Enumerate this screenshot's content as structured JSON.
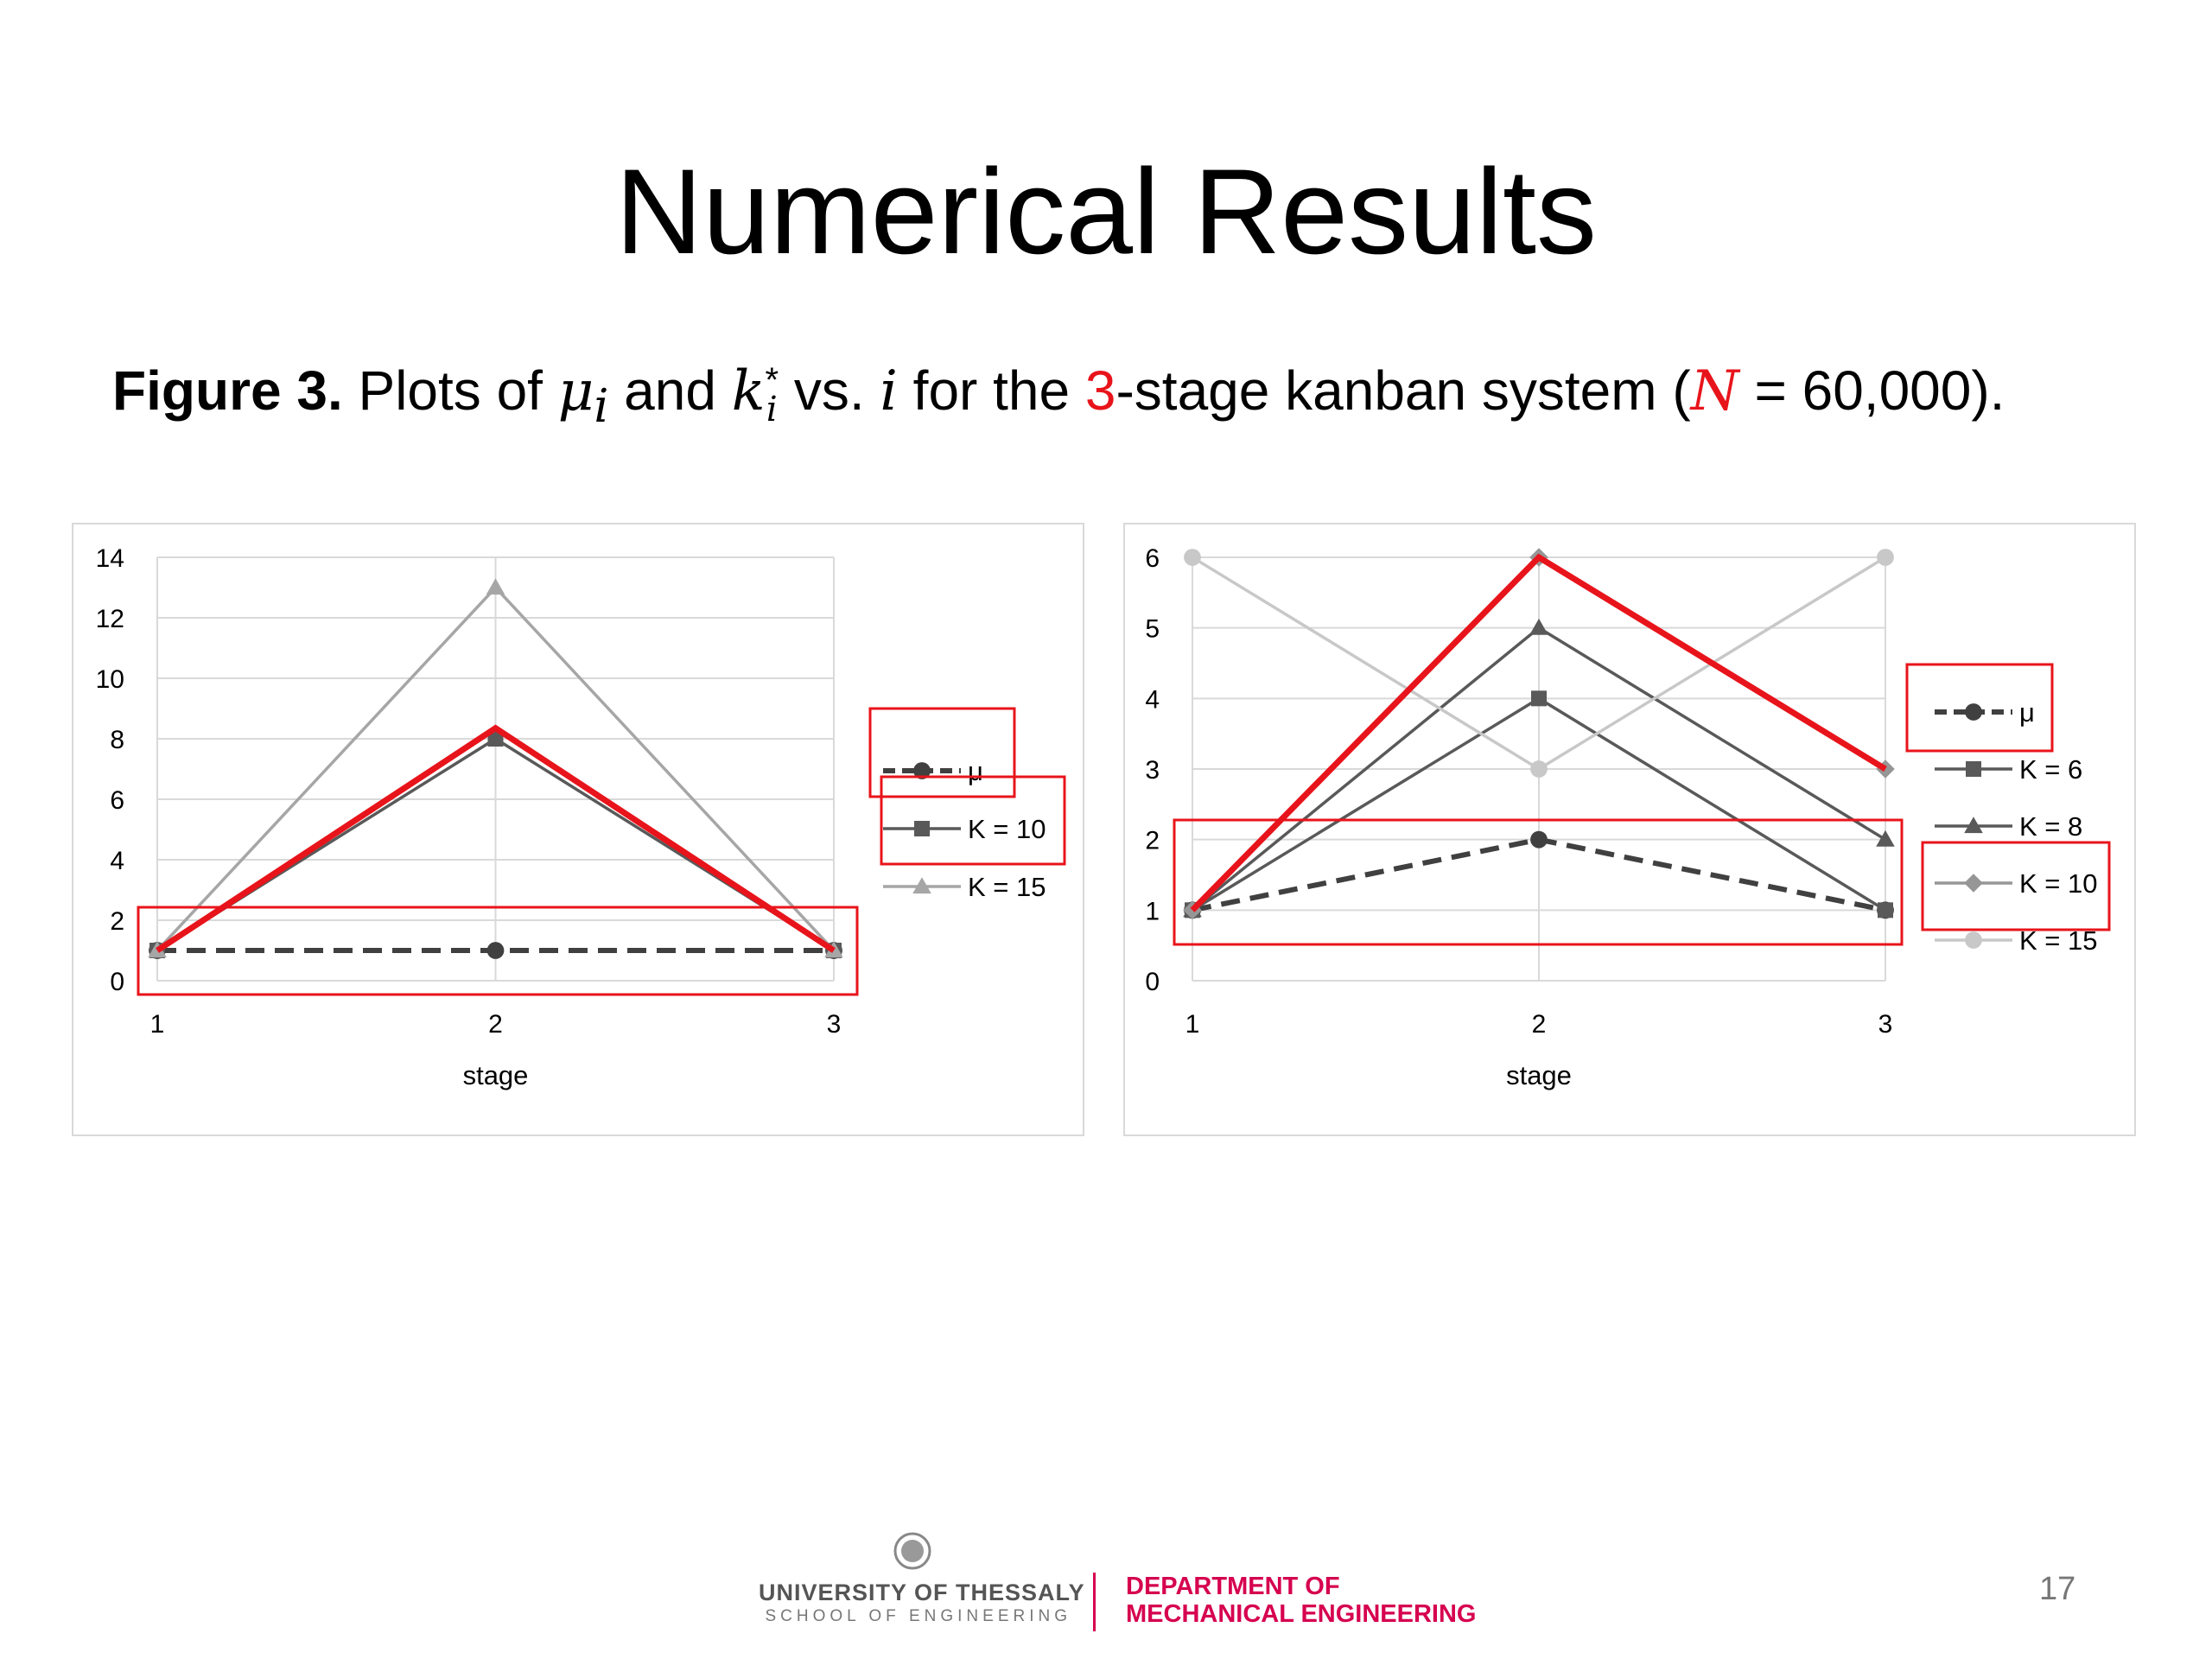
{
  "slide": {
    "title": "Numerical Results",
    "caption": {
      "figure_label": "Figure 3.",
      "t1": " Plots of ",
      "mu_sym": "μ",
      "mu_sub": "i",
      "t2": " and ",
      "k_sym": "k",
      "k_sub": "i",
      "k_sup": "*",
      "t3": " vs. ",
      "i_sym": "i",
      "t4": " for the ",
      "stages": "3",
      "t5": "-stage kanban system (",
      "n_sym": "N",
      "t6": " = 60,000)."
    },
    "footer": {
      "university": "UNIVERSITY OF THESSALY",
      "school": "SCHOOL OF ENGINEERING",
      "dept_line1": "DEPARTMENT OF",
      "dept_line2": "MECHANICAL ENGINEERING"
    },
    "page_number": "17"
  },
  "colors": {
    "highlight": "#e8141b",
    "brand": "#d6004f"
  },
  "chart_data": [
    {
      "type": "line",
      "xlabel": "stage",
      "ylabel": "",
      "categories": [
        "1",
        "2",
        "3"
      ],
      "ylim": [
        0,
        14
      ],
      "yticks": [
        "0",
        "2",
        "4",
        "6",
        "8",
        "10",
        "12",
        "14"
      ],
      "legend_position": "right",
      "series": [
        {
          "name": "μ",
          "values": [
            1,
            1,
            1
          ],
          "color": "#404040",
          "dash": true,
          "marker": "circle",
          "legend": true
        },
        {
          "name": "K = 10",
          "values": [
            1,
            8,
            1
          ],
          "color": "#595959",
          "dash": false,
          "marker": "square",
          "legend": true
        },
        {
          "name": "K = 15",
          "values": [
            1,
            13,
            1
          ],
          "color": "#a6a6a6",
          "dash": false,
          "marker": "triangle",
          "legend": true
        },
        {
          "name": "",
          "values": [
            1,
            8.35,
            1
          ],
          "color": "#e8141b",
          "dash": false,
          "marker": "none",
          "legend": false,
          "emphasis": true
        }
      ]
    },
    {
      "type": "line",
      "xlabel": "stage",
      "ylabel": "",
      "categories": [
        "1",
        "2",
        "3"
      ],
      "ylim": [
        0,
        6
      ],
      "yticks": [
        "0",
        "1",
        "2",
        "3",
        "4",
        "5",
        "6"
      ],
      "legend_position": "right",
      "series": [
        {
          "name": "μ",
          "values": [
            1,
            2,
            1
          ],
          "color": "#404040",
          "dash": true,
          "marker": "circle",
          "legend": true
        },
        {
          "name": "K = 6",
          "values": [
            1,
            4,
            1
          ],
          "color": "#595959",
          "dash": false,
          "marker": "square",
          "legend": true
        },
        {
          "name": "K = 8",
          "values": [
            1,
            5,
            2
          ],
          "color": "#595959",
          "dash": false,
          "marker": "triangle",
          "legend": true
        },
        {
          "name": "K = 10",
          "values": [
            1,
            6,
            3
          ],
          "color": "#969696",
          "dash": false,
          "marker": "diamond",
          "legend": true
        },
        {
          "name": "K = 15",
          "values": [
            6,
            3,
            6
          ],
          "color": "#c8c8c8",
          "dash": false,
          "marker": "circle",
          "legend": true
        },
        {
          "name": "",
          "values": [
            1,
            6,
            3
          ],
          "color": "#e8141b",
          "dash": false,
          "marker": "none",
          "legend": false,
          "emphasis": true
        }
      ]
    }
  ]
}
